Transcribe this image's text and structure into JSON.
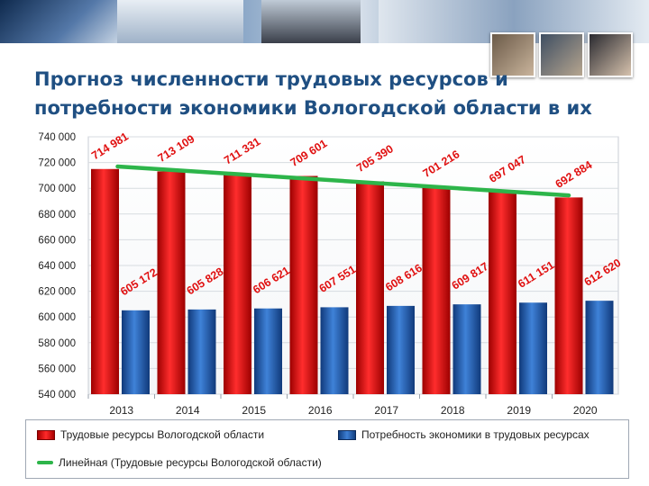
{
  "title": "Прогноз численности трудовых ресурсов и\nпотребности экономики Вологодской области в их",
  "colors": {
    "red_series": "#e01010",
    "blue_series": "#2460b8",
    "trend": "#2db54a",
    "title": "#1f4f82"
  },
  "chart_data": {
    "type": "bar",
    "categories": [
      "2013",
      "2014",
      "2015",
      "2016",
      "2017",
      "2018",
      "2019",
      "2020"
    ],
    "series": [
      {
        "name": "Трудовые ресурсы Вологодской области",
        "values": [
          714981,
          713109,
          711331,
          709601,
          705390,
          701216,
          697047,
          692884
        ],
        "labels": [
          "714 981",
          "713 109",
          "711 331",
          "709 601",
          "705 390",
          "701 216",
          "697 047",
          "692 884"
        ]
      },
      {
        "name": "Потребность экономики в трудовых ресурсах",
        "values": [
          605172,
          605828,
          606621,
          607551,
          608616,
          609817,
          611151,
          612620
        ],
        "labels": [
          "605 172",
          "605 828",
          "606 621",
          "607 551",
          "608 616",
          "609 817",
          "611 151",
          "612 620"
        ]
      }
    ],
    "trendline": {
      "name": "Линейная (Трудовые ресурсы Вологодской области)"
    },
    "ylim": [
      540000,
      740000
    ],
    "yticks": [
      740000,
      720000,
      700000,
      680000,
      660000,
      640000,
      620000,
      600000,
      580000,
      560000,
      540000
    ],
    "ytick_labels": [
      "740 000",
      "720 000",
      "700 000",
      "680 000",
      "660 000",
      "640 000",
      "620 000",
      "600 000",
      "580 000",
      "560 000",
      "540 000"
    ],
    "grid": true,
    "legend_position": "bottom"
  },
  "legend": {
    "red": "Трудовые ресурсы Вологодской области",
    "blue": "Потребность экономики в трудовых ресурсах",
    "trend": "Линейная (Трудовые ресурсы Вологодской области)"
  }
}
